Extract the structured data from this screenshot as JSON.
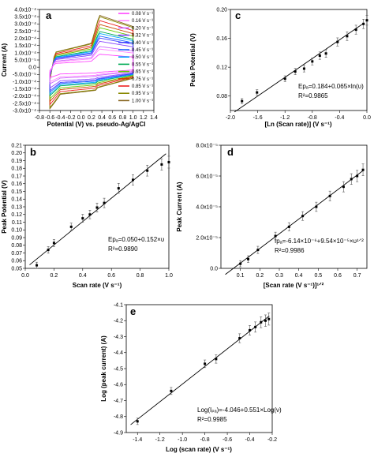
{
  "chart_data": [
    {
      "id": "a",
      "panel_label": "a",
      "type": "line",
      "xlabel": "Potential (V) vs. pseudo-Ag/AgCl",
      "ylabel": "Current (A)",
      "xlim": [
        -0.8,
        1.4
      ],
      "ylim": [
        -0.0003,
        0.0004
      ],
      "xticks": [
        "-0.8",
        "-0.6",
        "-0.4",
        "-0.2",
        "0.0",
        "0.2",
        "0.4",
        "0.6",
        "0.8",
        "1.0",
        "1.2",
        "1.4"
      ],
      "yticks": [
        "4.0x10⁻⁴",
        "3.5x10⁻⁴",
        "3.0x10⁻⁴",
        "2.5x10⁻⁴",
        "2.0x10⁻⁴",
        "1.5x10⁻⁴",
        "1.0x10⁻⁴",
        "5.0x10⁻⁵",
        "0.0",
        "-5.0x10⁻⁵",
        "-1.0x10⁻⁴",
        "-1.5x10⁻⁴",
        "-2.0x10⁻⁴",
        "-2.5x10⁻⁴",
        "-3.0x10⁻⁴"
      ],
      "series": [
        {
          "name": "0.08 V s⁻¹",
          "color": "#ff44ff",
          "scale": 0.2
        },
        {
          "name": "0.16 V s⁻¹",
          "color": "#ff88ff",
          "scale": 0.28
        },
        {
          "name": "0.20 V s⁻¹",
          "color": "#cc66ff",
          "scale": 0.32
        },
        {
          "name": "0.32 V s⁻¹",
          "color": "#8844ff",
          "scale": 0.4
        },
        {
          "name": "0.40 V s⁻¹",
          "color": "#4444ff",
          "scale": 0.45
        },
        {
          "name": "0.45 V s⁻¹",
          "color": "#2266ff",
          "scale": 0.48
        },
        {
          "name": "0.50 V s⁻¹",
          "color": "#00aaff",
          "scale": 0.52
        },
        {
          "name": "0.55 V s⁻¹",
          "color": "#00aa55",
          "scale": 0.55
        },
        {
          "name": "0.65 V s⁻¹",
          "color": "#66cc00",
          "scale": 0.61
        },
        {
          "name": "0.75 V s⁻¹",
          "color": "#cc4400",
          "scale": 0.66
        },
        {
          "name": "0.85 V s⁻¹",
          "color": "#ee2222",
          "scale": 0.72
        },
        {
          "name": "0.95 V s⁻¹",
          "color": "#888800",
          "scale": 0.78
        },
        {
          "name": "1.00 V s⁻¹",
          "color": "#886622",
          "scale": 0.8
        }
      ]
    },
    {
      "id": "b",
      "panel_label": "b",
      "type": "scatter",
      "xlabel": "Scan rate (V s⁻¹)",
      "ylabel": "Peak Potential (V)",
      "xlim": [
        0.0,
        1.0
      ],
      "ylim": [
        0.05,
        0.21
      ],
      "xticks": [
        "0.0",
        "0.2",
        "0.4",
        "0.6",
        "0.8",
        "1.0"
      ],
      "yticks": [
        "0.05",
        "0.06",
        "0.07",
        "0.08",
        "0.09",
        "0.10",
        "0.11",
        "0.12",
        "0.13",
        "0.14",
        "0.15",
        "0.16",
        "0.17",
        "0.18",
        "0.19",
        "0.20",
        "0.21"
      ],
      "x": [
        0.08,
        0.16,
        0.2,
        0.32,
        0.4,
        0.45,
        0.5,
        0.55,
        0.65,
        0.75,
        0.85,
        0.95,
        1.0
      ],
      "y": [
        0.054,
        0.074,
        0.083,
        0.104,
        0.115,
        0.12,
        0.129,
        0.135,
        0.154,
        0.165,
        0.177,
        0.185,
        0.188
      ],
      "fit": {
        "slope": 0.152,
        "intercept": 0.05
      },
      "eq": "Epₐ=0.050+0.152×υ",
      "r2": "R²=0.9890"
    },
    {
      "id": "c",
      "panel_label": "c",
      "type": "scatter",
      "xlabel": "[Ln (Scan rate)] (V s⁻¹)",
      "ylabel": "Peak Potential (V)",
      "xlim": [
        -2.0,
        0.0
      ],
      "ylim": [
        0.06,
        0.2
      ],
      "xticks": [
        "-2.0",
        "-1.6",
        "-1.2",
        "-0.8",
        "-0.4",
        "0.0"
      ],
      "yticks": [
        "0.08",
        "0.12",
        "0.16",
        "0.20"
      ],
      "x": [
        -1.83,
        -1.61,
        -1.2,
        -1.05,
        -0.92,
        -0.8,
        -0.69,
        -0.6,
        -0.43,
        -0.29,
        -0.16,
        -0.05,
        0.0
      ],
      "y": [
        0.073,
        0.085,
        0.104,
        0.114,
        0.118,
        0.128,
        0.136,
        0.139,
        0.155,
        0.163,
        0.172,
        0.18,
        0.185
      ],
      "fit": {
        "slope": 0.065,
        "intercept": 0.184
      },
      "eq": "Epₐ=0.184+0.065×ln(υ)",
      "r2": "R²=0.9865"
    },
    {
      "id": "d",
      "panel_label": "d",
      "type": "scatter",
      "xlabel": "[Scan rate (V s⁻¹)]¹ᐟ²",
      "ylabel": "Peak Current (A)",
      "xlim": [
        0.0,
        0.75
      ],
      "ylim": [
        0.0,
        8e-05
      ],
      "xticks": [
        "0.1",
        "0.2",
        "0.3",
        "0.4",
        "0.5",
        "0.6",
        "0.7"
      ],
      "yticks": [
        "0.0",
        "2.0x10⁻⁵",
        "4.0x10⁻⁵",
        "6.0x10⁻⁵",
        "8.0x10⁻⁵"
      ],
      "x": [
        0.1,
        0.14,
        0.19,
        0.28,
        0.35,
        0.42,
        0.49,
        0.56,
        0.63,
        0.67,
        0.7,
        0.73
      ],
      "y": [
        3e-06,
        6e-06,
        1.2e-05,
        2.1e-05,
        2.7e-05,
        3.4e-05,
        4e-05,
        4.7e-05,
        5.3e-05,
        5.8e-05,
        6e-05,
        6.4e-05
      ],
      "fit": {
        "slope": 9.54e-05,
        "intercept": -6.14e-06
      },
      "eq": "Ipₐ=-6.14×10⁻⁶+9.54×10⁻⁵×υ¹ᐟ²",
      "r2": "R²=0.9986"
    },
    {
      "id": "e",
      "panel_label": "e",
      "type": "scatter",
      "xlabel": "Log (scan rate) (V s⁻¹)",
      "ylabel": "Log (peak current) (A)",
      "xlim": [
        -1.5,
        -0.2
      ],
      "ylim": [
        -4.9,
        -4.1
      ],
      "xticks": [
        "-1.4",
        "-1.2",
        "-1.0",
        "-0.8",
        "-0.6",
        "-0.4",
        "-0.2"
      ],
      "yticks": [
        "-4.1",
        "-4.2",
        "-4.3",
        "-4.4",
        "-4.5",
        "-4.6",
        "-4.7",
        "-4.8",
        "-4.9"
      ],
      "x": [
        -1.4,
        -1.1,
        -0.8,
        -0.7,
        -0.49,
        -0.4,
        -0.35,
        -0.3,
        -0.26,
        -0.23
      ],
      "y": [
        -4.83,
        -4.64,
        -4.47,
        -4.44,
        -4.31,
        -4.26,
        -4.24,
        -4.21,
        -4.2,
        -4.19
      ],
      "fit": {
        "slope": 0.551,
        "intercept": -4.046
      },
      "eq": "Log(Iₚₐ)=-4.046+0.551×Log(ν)",
      "r2": "R²=0.9985"
    }
  ]
}
